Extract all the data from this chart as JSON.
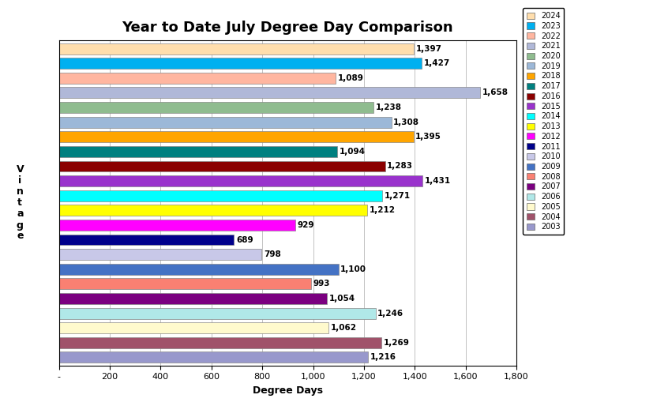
{
  "title": "Year to Date July Degree Day Comparison",
  "xlabel": "Degree Days",
  "ylabel": "V\ni\nn\nt\na\ng\ne",
  "years": [
    2024,
    2023,
    2022,
    2021,
    2020,
    2019,
    2018,
    2017,
    2016,
    2015,
    2014,
    2013,
    2012,
    2011,
    2010,
    2009,
    2008,
    2007,
    2006,
    2005,
    2004,
    2003
  ],
  "values": [
    1397,
    1427,
    1089,
    1658,
    1238,
    1308,
    1395,
    1094,
    1283,
    1431,
    1271,
    1212,
    929,
    689,
    798,
    1100,
    993,
    1054,
    1246,
    1062,
    1269,
    1216
  ],
  "colors": [
    "#FFDEAD",
    "#00B0F0",
    "#FFB6A0",
    "#B0B8D8",
    "#8FBC8F",
    "#9CB8D8",
    "#FFA500",
    "#008080",
    "#8B0000",
    "#9932CC",
    "#00FFFF",
    "#FFFF00",
    "#FF00FF",
    "#00008B",
    "#C8C8E8",
    "#4472C4",
    "#FA8072",
    "#7B0080",
    "#B0E8E8",
    "#FFFACD",
    "#A0526A",
    "#9898CC"
  ],
  "xlim": [
    0,
    1800
  ],
  "xticks": [
    0,
    200,
    400,
    600,
    800,
    1000,
    1200,
    1400,
    1600,
    1800
  ],
  "xticklabels": [
    "-",
    "200",
    "400",
    "600",
    "800",
    "1,000",
    "1,200",
    "1,400",
    "1,600",
    "1,800"
  ],
  "background_color": "#FFFFFF",
  "plot_bg_color": "#FFFFFF",
  "bar_height": 0.75,
  "title_fontsize": 13,
  "axis_label_fontsize": 9,
  "tick_fontsize": 8,
  "value_fontsize": 7.5
}
